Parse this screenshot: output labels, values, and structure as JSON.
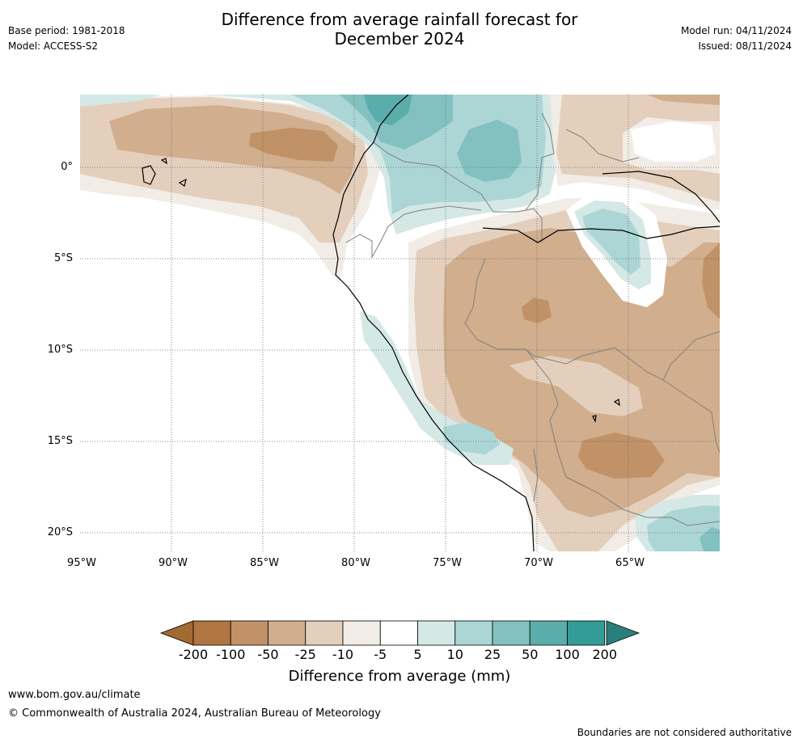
{
  "header": {
    "title_line1": "Difference from average rainfall forecast for",
    "title_line2": "December 2024",
    "base_period": "Base period: 1981-2018",
    "model": "Model: ACCESS-S2",
    "model_run": "Model run: 04/11/2024",
    "issued": "Issued: 08/11/2024"
  },
  "map": {
    "lat_labels": [
      "0°",
      "5°S",
      "10°S",
      "15°S",
      "20°S"
    ],
    "lon_labels": [
      "95°W",
      "90°W",
      "85°W",
      "80°W",
      "75°W",
      "70°W",
      "65°W"
    ]
  },
  "colorbar": {
    "title": "Difference from average (mm)",
    "tick_labels": [
      "-200",
      "-100",
      "-50",
      "-25",
      "-10",
      "-5",
      "5",
      "10",
      "25",
      "50",
      "100",
      "200"
    ],
    "colors": [
      "#a26a33",
      "#b07540",
      "#c19167",
      "#d1ae8d",
      "#e3cfbc",
      "#f1ece6",
      "#ffffff",
      "#d4e8e6",
      "#abd6d5",
      "#82c1bf",
      "#5aadaa",
      "#339b98",
      "#2a7f7c"
    ]
  },
  "footer": {
    "url": "www.bom.gov.au/climate",
    "copyright": "© Commonwealth of Australia 2024, Australian Bureau of Meteorology",
    "disclaimer": "Boundaries are not considered authoritative"
  }
}
